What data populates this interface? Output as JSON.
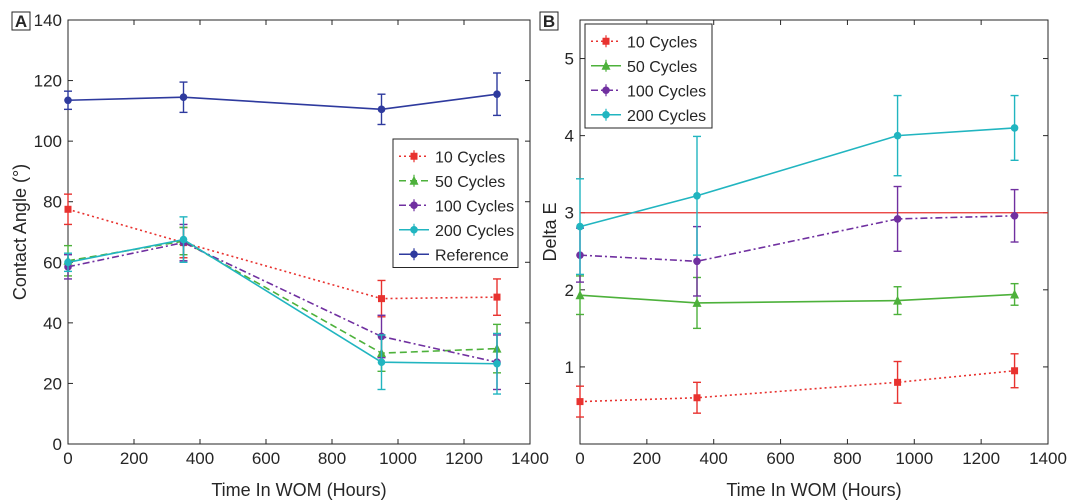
{
  "chart_data": [
    {
      "type": "line",
      "panel_label": "A",
      "xlabel": "Time In WOM (Hours)",
      "ylabel": "Contact Angle (°)",
      "xlim": [
        0,
        1400
      ],
      "ylim": [
        0,
        140
      ],
      "x_ticks": [
        0,
        200,
        400,
        600,
        800,
        1000,
        1200,
        1400
      ],
      "y_ticks": [
        0,
        20,
        40,
        60,
        80,
        100,
        120,
        140
      ],
      "grid": false,
      "legend_position": "center-right",
      "x": [
        0,
        350,
        950,
        1300
      ],
      "series": [
        {
          "name": "10 Cycles",
          "color": "#e8322f",
          "line_style": "dotted",
          "marker": "square",
          "values": [
            77.5,
            66.5,
            48,
            48.5
          ],
          "errors": [
            5,
            5,
            6,
            6
          ]
        },
        {
          "name": "50 Cycles",
          "color": "#4db13b",
          "line_style": "dashed",
          "marker": "triangle",
          "values": [
            60.5,
            67,
            30,
            31.5
          ],
          "errors": [
            5,
            4.5,
            6,
            8
          ]
        },
        {
          "name": "100 Cycles",
          "color": "#7030a0",
          "line_style": "dashdot",
          "marker": "circle",
          "values": [
            58.5,
            66.5,
            35.5,
            27
          ],
          "errors": [
            4,
            6,
            7,
            9
          ]
        },
        {
          "name": "200 Cycles",
          "color": "#21b5c0",
          "line_style": "solid",
          "marker": "circle",
          "values": [
            60,
            67.5,
            27,
            26.5
          ],
          "errors": [
            3,
            7.5,
            9,
            10
          ]
        },
        {
          "name": "Reference",
          "color": "#2e3a9e",
          "line_style": "solid",
          "marker": "circle",
          "values": [
            113.5,
            114.5,
            110.5,
            115.5
          ],
          "errors": [
            3,
            5,
            5,
            7
          ]
        }
      ]
    },
    {
      "type": "line",
      "panel_label": "B",
      "xlabel": "Time In WOM (Hours)",
      "ylabel": "Delta E",
      "xlim": [
        0,
        1400
      ],
      "ylim": [
        0,
        5.5
      ],
      "x_ticks": [
        0,
        200,
        400,
        600,
        800,
        1000,
        1200,
        1400
      ],
      "y_ticks": [
        1,
        2,
        3,
        4,
        5
      ],
      "grid": false,
      "legend_position": "top-left",
      "reference_line": {
        "y": 3,
        "color": "#e8322f"
      },
      "x": [
        0,
        350,
        950,
        1300
      ],
      "series": [
        {
          "name": "10 Cycles",
          "color": "#e8322f",
          "line_style": "dotted",
          "marker": "square",
          "values": [
            0.55,
            0.6,
            0.8,
            0.95
          ],
          "errors": [
            0.2,
            0.2,
            0.27,
            0.22
          ]
        },
        {
          "name": "50 Cycles",
          "color": "#4db13b",
          "line_style": "solid",
          "marker": "triangle",
          "values": [
            1.93,
            1.83,
            1.86,
            1.94
          ],
          "errors": [
            0.25,
            0.33,
            0.18,
            0.14
          ]
        },
        {
          "name": "100 Cycles",
          "color": "#7030a0",
          "line_style": "dashdot",
          "marker": "circle",
          "values": [
            2.45,
            2.37,
            2.92,
            2.96
          ],
          "errors": [
            0.35,
            0.45,
            0.42,
            0.34
          ]
        },
        {
          "name": "200 Cycles",
          "color": "#21b5c0",
          "line_style": "solid",
          "marker": "circle",
          "values": [
            2.82,
            3.22,
            4.0,
            4.1
          ],
          "errors": [
            0.62,
            0.77,
            0.52,
            0.42
          ]
        }
      ]
    }
  ]
}
